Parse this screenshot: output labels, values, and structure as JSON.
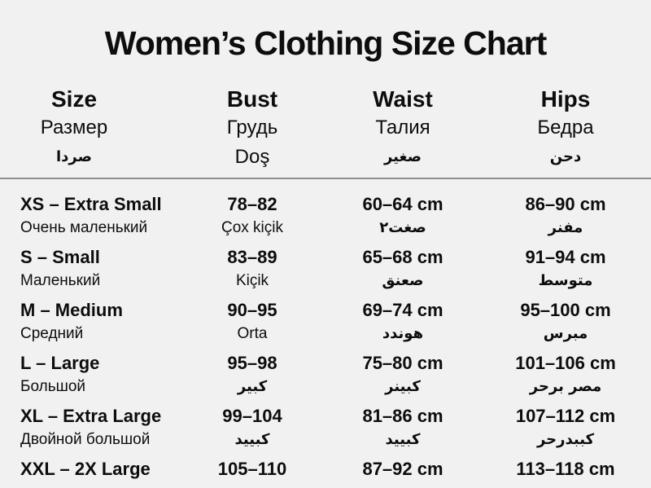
{
  "page": {
    "title": "Women’s Clothing Size Chart"
  },
  "table": {
    "columns": [
      {
        "en": "Size",
        "ru": "Размер",
        "l3": "صردا"
      },
      {
        "en": "Bust",
        "ru": "Грудь",
        "l3": "Doş"
      },
      {
        "en": "Waist",
        "ru": "Талия",
        "l3": "صغير"
      },
      {
        "en": "Hips",
        "ru": "Бедра",
        "l3": "دحن"
      }
    ],
    "rows": [
      {
        "size": [
          "XS – Extra Small",
          "Очень маленький"
        ],
        "bust": [
          "78–82",
          "Çox kiçik"
        ],
        "waist": [
          "60–64 cm",
          "صغت٢"
        ],
        "hips": [
          "86–90 cm",
          "مفنر"
        ]
      },
      {
        "size": [
          "S – Small",
          "Маленький"
        ],
        "bust": [
          "83–89",
          "Kiçik"
        ],
        "waist": [
          "65–68 cm",
          "صعنق"
        ],
        "hips": [
          "91–94 cm",
          "متوسط"
        ]
      },
      {
        "size": [
          "M – Medium",
          "Средний"
        ],
        "bust": [
          "90–95",
          "Orta"
        ],
        "waist": [
          "69–74 cm",
          "هوندد"
        ],
        "hips": [
          "95–100 cm",
          "مبرس"
        ]
      },
      {
        "size": [
          "L – Large",
          "Большой"
        ],
        "bust": [
          "95–98",
          "كبير"
        ],
        "waist": [
          "75–80 cm",
          "كبينر"
        ],
        "hips": [
          "101–106 cm",
          "مصر برحر"
        ]
      },
      {
        "size": [
          "XL – Extra Large",
          "Двойной большой"
        ],
        "bust": [
          "99–104",
          "كبييد"
        ],
        "waist": [
          "81–86 cm",
          "كبييد"
        ],
        "hips": [
          "107–112 cm",
          "كببدرحر"
        ]
      },
      {
        "size": [
          "XXL – 2X Large"
        ],
        "bust": [
          "105–110"
        ],
        "waist": [
          "87–92 cm"
        ],
        "hips": [
          "113–118 cm"
        ]
      }
    ]
  }
}
